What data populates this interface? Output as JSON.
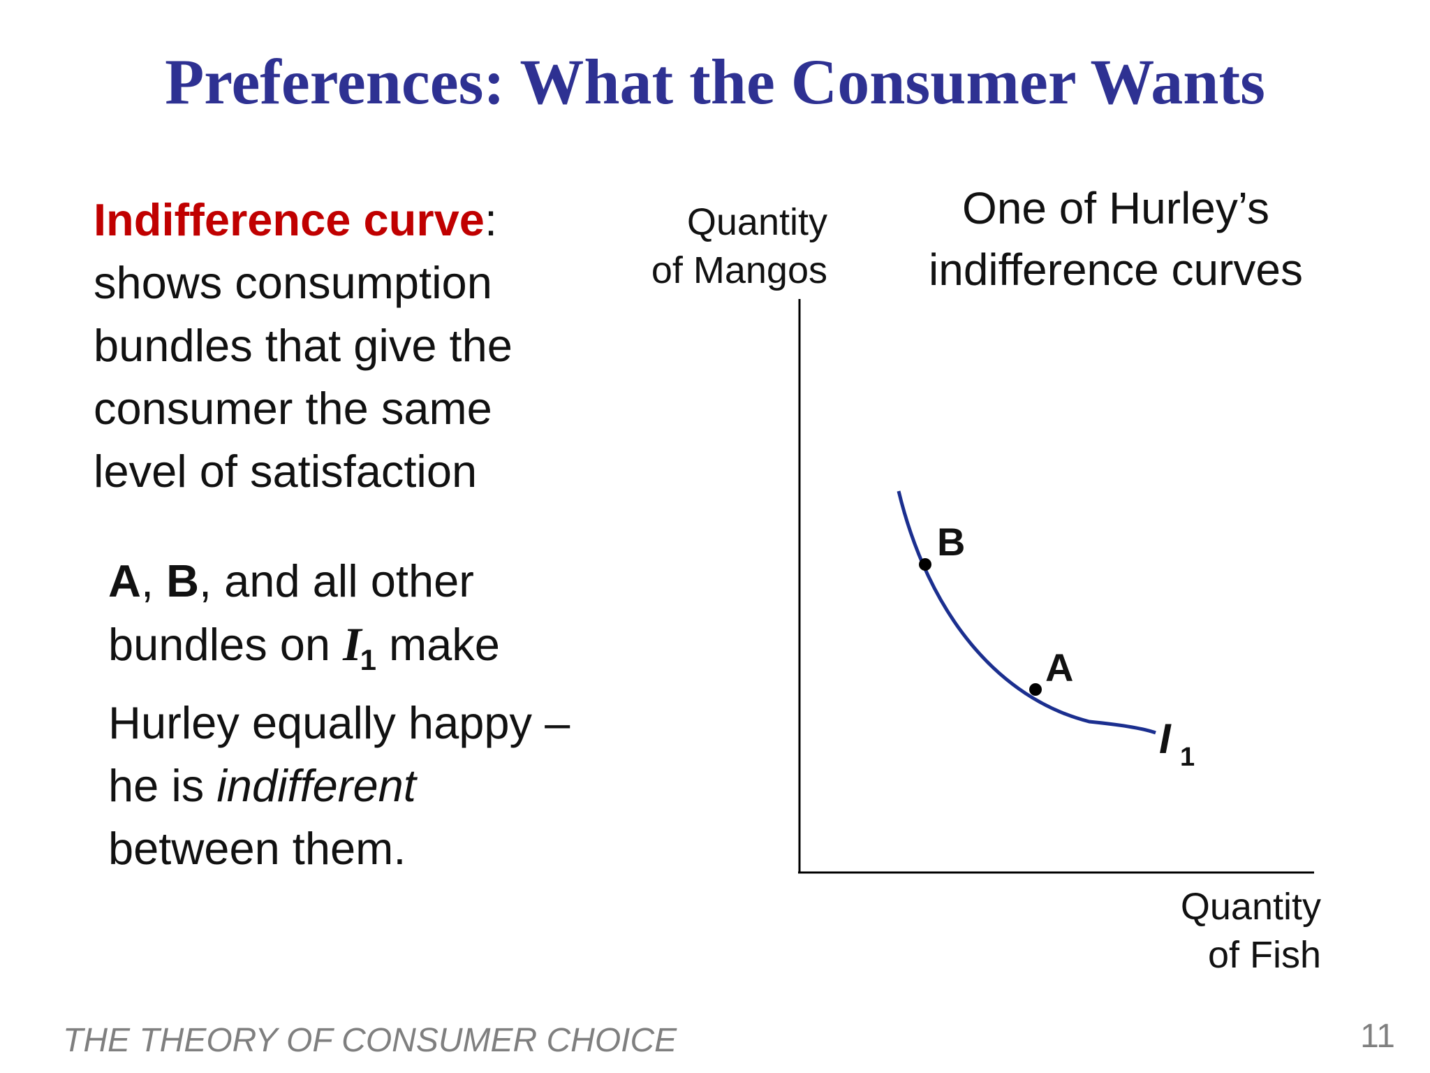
{
  "slide": {
    "title": "Preferences:  What the Consumer Wants",
    "definition": {
      "term": "Indifference curve",
      "colon": ":",
      "lines": [
        "shows consumption",
        "bundles that give the",
        "consumer the same",
        "level of satisfaction"
      ]
    },
    "bundles_text": {
      "a": "A",
      "sep1": ", ",
      "b": "B",
      "rest1": ", and all other",
      "line2_start": "bundles on ",
      "curve_letter": "I",
      "curve_sub": "1",
      "line2_end": " make",
      "line3": "Hurley equally happy –",
      "line4_start": "he is ",
      "line4_italic": "indifferent",
      "line5": "between them."
    },
    "footer": "THE THEORY OF CONSUMER CHOICE",
    "page_number": "11"
  },
  "diagram": {
    "ylabel_lines": [
      "Quantity",
      "of Mangos"
    ],
    "xlabel_lines": [
      "Quantity",
      "of Fish"
    ],
    "caption_lines": [
      "One of Hurley’s",
      "indifference curves"
    ],
    "curve_label": "I",
    "curve_label_sub": "1",
    "points": [
      {
        "label": "B"
      },
      {
        "label": "A"
      }
    ],
    "colors": {
      "curve": "#1b2f8f",
      "axis": "#000000",
      "points": "#000000"
    }
  }
}
